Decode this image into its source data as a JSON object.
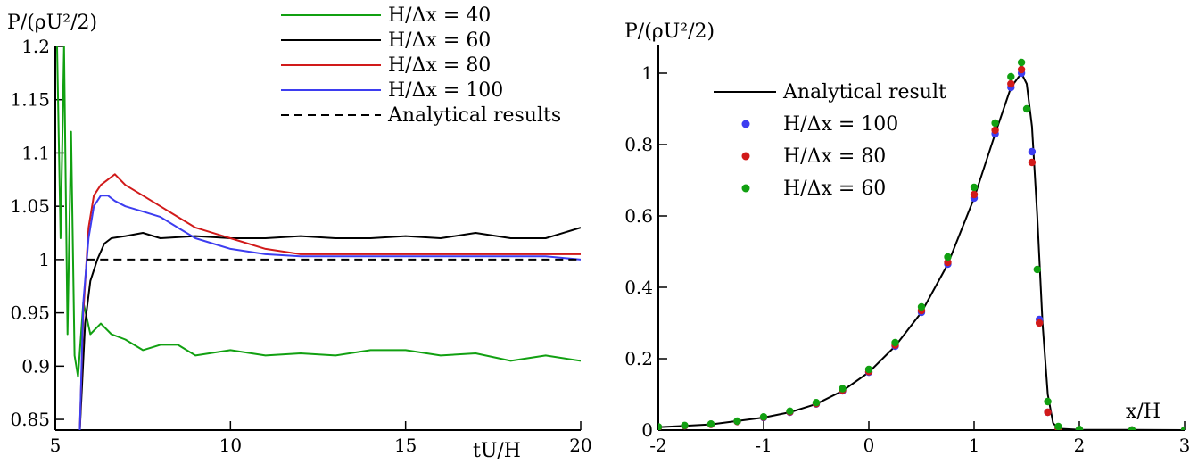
{
  "chart_data": [
    {
      "type": "line",
      "ylabel": "P/(ρU²/2)",
      "xlabel": "tU/H",
      "xlim": [
        5,
        20
      ],
      "ylim": [
        0.84,
        1.2
      ],
      "xticks": [
        "5",
        "10",
        "15",
        "20"
      ],
      "yticks": [
        "0.85",
        "0.9",
        "0.95",
        "1",
        "1.05",
        "1.1",
        "1.15",
        "1.2"
      ],
      "legend_position": "top-right",
      "series": [
        {
          "name": "H/Δx = 40",
          "color": "#11a011",
          "x": [
            5.05,
            5.15,
            5.25,
            5.35,
            5.45,
            5.55,
            5.65,
            5.8,
            6.0,
            6.3,
            6.6,
            7,
            7.5,
            8,
            8.5,
            9,
            10,
            11,
            12,
            13,
            14,
            15,
            16,
            17,
            18,
            19,
            20
          ],
          "values": [
            1.2,
            1.02,
            1.2,
            0.93,
            1.12,
            0.91,
            0.89,
            0.96,
            0.93,
            0.94,
            0.93,
            0.925,
            0.915,
            0.92,
            0.92,
            0.91,
            0.915,
            0.91,
            0.912,
            0.91,
            0.915,
            0.915,
            0.91,
            0.912,
            0.905,
            0.91,
            0.905
          ]
        },
        {
          "name": "H/Δx = 60",
          "color": "#000000",
          "x": [
            5.7,
            5.85,
            6.0,
            6.2,
            6.4,
            6.6,
            7,
            7.5,
            8,
            9,
            10,
            11,
            12,
            13,
            14,
            15,
            16,
            17,
            18,
            19,
            20
          ],
          "values": [
            0.84,
            0.94,
            0.98,
            1.0,
            1.015,
            1.02,
            1.022,
            1.025,
            1.02,
            1.022,
            1.02,
            1.02,
            1.022,
            1.02,
            1.02,
            1.022,
            1.02,
            1.025,
            1.02,
            1.02,
            1.03
          ]
        },
        {
          "name": "H/Δx = 80",
          "color": "#d11a1a",
          "x": [
            5.7,
            5.8,
            5.95,
            6.1,
            6.3,
            6.5,
            6.7,
            7,
            7.5,
            8,
            8.5,
            9,
            10,
            11,
            12,
            13,
            14,
            15,
            16,
            17,
            18,
            19,
            20
          ],
          "values": [
            0.84,
            0.95,
            1.03,
            1.06,
            1.07,
            1.075,
            1.08,
            1.07,
            1.06,
            1.05,
            1.04,
            1.03,
            1.02,
            1.01,
            1.005,
            1.005,
            1.005,
            1.005,
            1.005,
            1.005,
            1.005,
            1.005,
            1.005
          ]
        },
        {
          "name": "H/Δx = 100",
          "color": "#3d3df0",
          "x": [
            5.7,
            5.8,
            5.95,
            6.1,
            6.3,
            6.5,
            6.7,
            7,
            7.5,
            8,
            8.5,
            9,
            10,
            11,
            12,
            13,
            14,
            15,
            16,
            17,
            18,
            19,
            20
          ],
          "values": [
            0.84,
            0.96,
            1.02,
            1.05,
            1.06,
            1.06,
            1.055,
            1.05,
            1.045,
            1.04,
            1.03,
            1.02,
            1.01,
            1.005,
            1.003,
            1.003,
            1.003,
            1.003,
            1.003,
            1.003,
            1.003,
            1.003,
            1.0
          ]
        },
        {
          "name": "Analytical results",
          "color": "#000000",
          "dashed": true,
          "x": [
            5.9,
            20
          ],
          "values": [
            1.0,
            1.0
          ]
        }
      ]
    },
    {
      "type": "scatter",
      "ylabel": "P/(ρU²/2)",
      "xlabel": "x/H",
      "xlim": [
        -2,
        3
      ],
      "ylim": [
        0,
        1.08
      ],
      "xticks": [
        "-2",
        "-1",
        "0",
        "1",
        "2",
        "3"
      ],
      "yticks": [
        "0",
        "0.2",
        "0.4",
        "0.6",
        "0.8",
        "1"
      ],
      "legend_position": "upper-left",
      "series": [
        {
          "name": "Analytical result",
          "color": "#000000",
          "style": "line",
          "x": [
            -2,
            -1.5,
            -1,
            -0.75,
            -0.5,
            -0.25,
            0,
            0.25,
            0.5,
            0.75,
            1,
            1.2,
            1.35,
            1.45,
            1.5,
            1.55,
            1.6,
            1.65,
            1.7,
            1.75,
            1.8,
            2,
            3
          ],
          "values": [
            0.008,
            0.016,
            0.035,
            0.05,
            0.073,
            0.11,
            0.162,
            0.235,
            0.33,
            0.465,
            0.65,
            0.83,
            0.96,
            1.0,
            0.97,
            0.85,
            0.6,
            0.3,
            0.1,
            0.02,
            0.004,
            0.001,
            0.0
          ]
        },
        {
          "name": "H/Δx = 100",
          "color": "#3d3df0",
          "style": "points",
          "x": [
            -2,
            -1.75,
            -1.5,
            -1.25,
            -1,
            -0.75,
            -0.5,
            -0.25,
            0,
            0.25,
            0.5,
            0.75,
            1,
            1.2,
            1.35,
            1.45,
            1.55,
            1.62,
            1.7,
            1.8,
            2,
            2.5,
            3
          ],
          "values": [
            0.008,
            0.012,
            0.016,
            0.024,
            0.035,
            0.05,
            0.073,
            0.11,
            0.162,
            0.235,
            0.33,
            0.465,
            0.65,
            0.83,
            0.96,
            1.0,
            0.78,
            0.31,
            0.05,
            0.005,
            0.001,
            0.0,
            0.0
          ]
        },
        {
          "name": "H/Δx = 80",
          "color": "#d11a1a",
          "style": "points",
          "x": [
            -2,
            -1.75,
            -1.5,
            -1.25,
            -1,
            -0.75,
            -0.5,
            -0.25,
            0,
            0.25,
            0.5,
            0.75,
            1,
            1.2,
            1.35,
            1.45,
            1.55,
            1.62,
            1.7,
            1.8,
            2,
            2.5,
            3
          ],
          "values": [
            0.008,
            0.012,
            0.016,
            0.024,
            0.036,
            0.051,
            0.074,
            0.112,
            0.164,
            0.238,
            0.335,
            0.47,
            0.66,
            0.84,
            0.97,
            1.01,
            0.75,
            0.3,
            0.05,
            0.005,
            0.001,
            0.0,
            0.0
          ]
        },
        {
          "name": "H/Δx = 60",
          "color": "#11a011",
          "style": "points",
          "x": [
            -2,
            -1.75,
            -1.5,
            -1.25,
            -1,
            -0.75,
            -0.5,
            -0.25,
            0,
            0.25,
            0.5,
            0.75,
            1,
            1.2,
            1.35,
            1.45,
            1.5,
            1.6,
            1.7,
            1.8,
            2,
            2.5,
            3
          ],
          "values": [
            0.009,
            0.013,
            0.017,
            0.025,
            0.037,
            0.053,
            0.077,
            0.116,
            0.17,
            0.245,
            0.345,
            0.485,
            0.68,
            0.86,
            0.99,
            1.03,
            0.9,
            0.45,
            0.08,
            0.01,
            0.002,
            0.0,
            0.0
          ]
        }
      ]
    }
  ]
}
